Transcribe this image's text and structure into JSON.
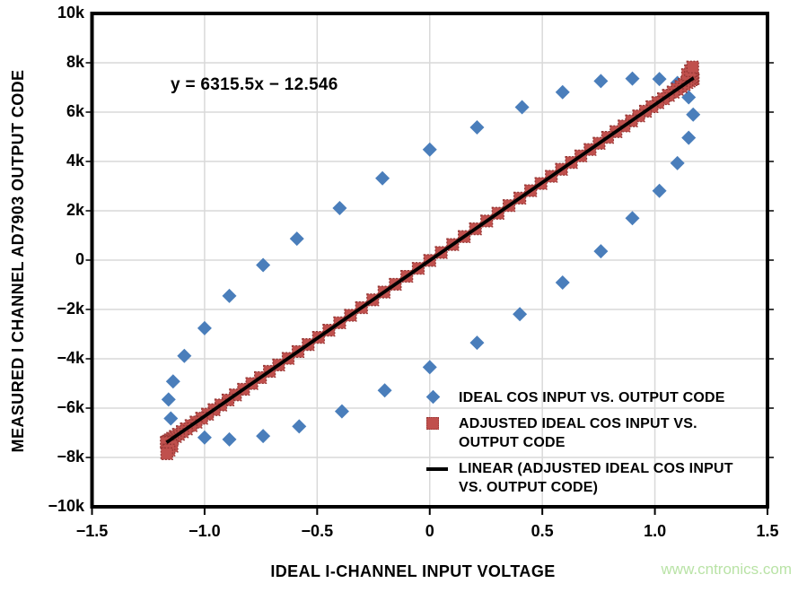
{
  "watermark": {
    "text": "www.cntronics.com",
    "color": "#b9e3a6"
  },
  "colors": {
    "series_blue": "#4a7ebb",
    "series_red": "#c0504d",
    "series_red_border": "#943634",
    "trend_line": "#000000",
    "grid": "#d9d9d9",
    "axis": "#000000",
    "text": "#000000"
  },
  "legend": {
    "items": [
      {
        "marker": "diamond-icon",
        "color": "#4a7ebb",
        "lines": [
          "IDEAL COS INPUT VS. OUTPUT CODE"
        ]
      },
      {
        "marker": "square-icon",
        "color": "#c0504d",
        "lines": [
          "ADJUSTED IDEAL COS INPUT VS.",
          "OUTPUT CODE"
        ]
      },
      {
        "marker": "line-icon",
        "color": "#000000",
        "lines": [
          "LINEAR (ADJUSTED IDEAL COS INPUT",
          "VS. OUTPUT CODE)"
        ]
      }
    ]
  },
  "chart_data": {
    "type": "scatter",
    "title": "",
    "annotation": "y = 6315.5x − 12.546",
    "xlabel": "IDEAL I-CHANNEL INPUT VOLTAGE",
    "ylabel": "MEASURED I CHANNEL AD7903 OUTPUT CODE",
    "xlim": [
      -1.5,
      1.5
    ],
    "ylim": [
      -10000,
      10000
    ],
    "x_step": 0.5,
    "y_step": 2000,
    "x_tick_labels": [
      "−1.5",
      "−1.0",
      "−0.5",
      "0",
      "0.5",
      "1.0",
      "1.5"
    ],
    "y_tick_labels": [
      "10k",
      "8k",
      "6k",
      "4k",
      "2k",
      "0",
      "−2k",
      "−4k",
      "−6k",
      "−8k",
      "−10k"
    ],
    "grid": true,
    "legend_position": "inside-bottom-right",
    "series": [
      {
        "name": "IDEAL COS INPUT VS. OUTPUT CODE",
        "type": "scatter",
        "marker": "diamond",
        "color": "#4a7ebb",
        "points": [
          [
            1.02,
            7340
          ],
          [
            1.1,
            7180
          ],
          [
            0.9,
            7360
          ],
          [
            0.76,
            7260
          ],
          [
            0.59,
            6810
          ],
          [
            0.41,
            6200
          ],
          [
            0.21,
            5380
          ],
          [
            0.0,
            4480
          ],
          [
            -0.21,
            3320
          ],
          [
            -0.4,
            2110
          ],
          [
            -0.59,
            870
          ],
          [
            -0.74,
            -200
          ],
          [
            -0.89,
            -1450
          ],
          [
            -1.0,
            -2760
          ],
          [
            -1.09,
            -3880
          ],
          [
            -1.14,
            -4920
          ],
          [
            -1.16,
            -5650
          ],
          [
            -1.15,
            -6420
          ],
          [
            -1.08,
            -6840
          ],
          [
            -1.0,
            -7190
          ],
          [
            -0.89,
            -7270
          ],
          [
            -0.74,
            -7130
          ],
          [
            -0.58,
            -6740
          ],
          [
            -0.39,
            -6130
          ],
          [
            -0.2,
            -5280
          ],
          [
            0.0,
            -4340
          ],
          [
            0.21,
            -3350
          ],
          [
            0.4,
            -2190
          ],
          [
            0.59,
            -910
          ],
          [
            0.76,
            360
          ],
          [
            0.9,
            1700
          ],
          [
            1.02,
            2810
          ],
          [
            1.1,
            3930
          ],
          [
            1.15,
            4960
          ],
          [
            1.17,
            5900
          ],
          [
            1.15,
            6600
          ]
        ]
      },
      {
        "name": "ADJUSTED IDEAL COS INPUT VS. OUTPUT CODE",
        "type": "scatter",
        "marker": "square",
        "color": "#c0504d",
        "y_formula": {
          "slope": 6315.5,
          "intercept": -12.546
        },
        "x": [
          1.17,
          1.169,
          1.166,
          1.16,
          1.152,
          1.142,
          1.13,
          1.116,
          1.099,
          1.081,
          1.06,
          1.038,
          1.013,
          0.987,
          0.958,
          0.928,
          0.896,
          0.863,
          0.827,
          0.79,
          0.752,
          0.712,
          0.671,
          0.629,
          0.585,
          0.54,
          0.494,
          0.448,
          0.4,
          0.352,
          0.303,
          0.253,
          0.203,
          0.153,
          0.102,
          0.051,
          0,
          -0.051,
          -0.102,
          -0.153,
          -0.203,
          -0.253,
          -0.303,
          -0.352,
          -0.4,
          -0.448,
          -0.494,
          -0.54,
          -0.585,
          -0.629,
          -0.671,
          -0.712,
          -0.752,
          -0.79,
          -0.827,
          -0.863,
          -0.896,
          -0.928,
          -0.958,
          -0.987,
          -1.013,
          -1.038,
          -1.06,
          -1.081,
          -1.099,
          -1.116,
          -1.13,
          -1.142,
          -1.152,
          -1.16,
          -1.166,
          -1.169,
          -1.17
        ],
        "extra_points": [
          [
            1.145,
            7520
          ],
          [
            1.158,
            7680
          ],
          [
            1.168,
            7830
          ],
          [
            -1.145,
            -7540
          ],
          [
            -1.158,
            -7700
          ],
          [
            -1.168,
            -7850
          ]
        ]
      },
      {
        "name": "LINEAR (ADJUSTED IDEAL COS INPUT VS. OUTPUT CODE)",
        "type": "line",
        "color": "#000000",
        "slope": 6315.5,
        "intercept": -12.546,
        "x_range": [
          -1.169,
          1.172
        ]
      }
    ]
  }
}
